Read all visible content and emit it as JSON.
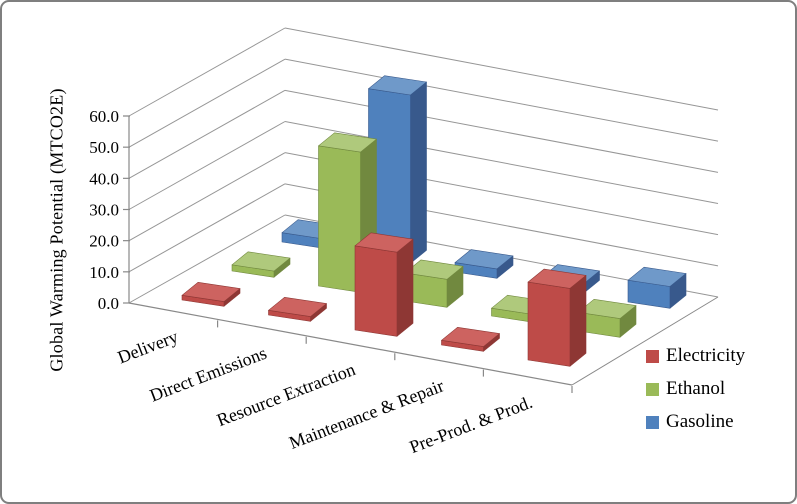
{
  "frame": {
    "background": "#FFFFFF",
    "border_color": "#7F7F7F"
  },
  "chart_data": {
    "type": "bar",
    "style": "3d-column",
    "title": "",
    "categories": [
      "Delivery",
      "Direct Emissions",
      "Resource Extraction",
      "Maintenance & Repair",
      "Pre-Prod. & Prod."
    ],
    "series": [
      {
        "name": "Electricity",
        "color": "#BE4B48",
        "color_top": "#CD6360",
        "color_side": "#8E3734",
        "values": [
          1.5,
          1.5,
          27,
          1.5,
          25
        ]
      },
      {
        "name": "Ethanol",
        "color": "#9ABA58",
        "color_top": "#AFC97C",
        "color_side": "#71893F",
        "values": [
          2,
          45,
          9,
          2.5,
          6
        ]
      },
      {
        "name": "Gasoline",
        "color": "#4F81BD",
        "color_top": "#6F99C9",
        "color_side": "#38598C",
        "values": [
          3,
          54,
          3,
          3,
          7
        ]
      }
    ],
    "xlabel": "",
    "ylabel": "Global Warming Potential (MTCO2E)",
    "ylim": [
      0,
      60
    ],
    "ytick_step": 10,
    "ytick_format": "one_decimal",
    "grid": true,
    "legend_position": "right",
    "gridline_color": "#969696",
    "axis_color": "#898989",
    "text_color": "#000000"
  }
}
